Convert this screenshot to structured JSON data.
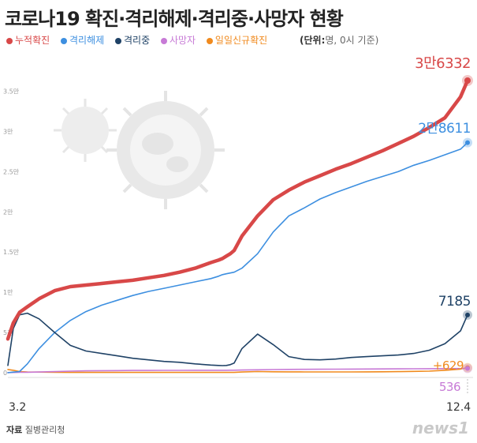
{
  "title": "코로나19 확진·격리해제·격리중·사망자 현황",
  "unit_label": "(단위:",
  "unit_value": "명, 0시 기준)",
  "source_label": "자료",
  "source_value": "질병관리청",
  "logo_text": "news1",
  "colors": {
    "cumulative": "#d84848",
    "released": "#3d8fe0",
    "isolated": "#1f4266",
    "deaths": "#c77ad6",
    "daily": "#f08a1e"
  },
  "chart_data": {
    "type": "line",
    "title": "코로나19 확진·격리해제·격리중·사망자 현황",
    "xlabel": "",
    "ylabel": "",
    "x_ticks": [
      "3.2",
      "12.4"
    ],
    "y_ticks": [
      "0",
      "5천",
      "1만",
      "1.5만",
      "2만",
      "2.5만",
      "3만",
      "3.5만"
    ],
    "ylim": [
      0,
      37000
    ],
    "grid": false,
    "legend": "top-left",
    "x": [
      0,
      7,
      15,
      25,
      40,
      60,
      80,
      100,
      120,
      140,
      160,
      180,
      200,
      220,
      240,
      260,
      270,
      275,
      280,
      285,
      290,
      300,
      320,
      340,
      360,
      380,
      400,
      420,
      440,
      460,
      480,
      500,
      520,
      540,
      560,
      580,
      589
    ],
    "series": [
      {
        "name": "누적확진",
        "key": "cumulative",
        "end_label": "3만6332",
        "values": [
          4200,
          6200,
          7500,
          8200,
          9200,
          10200,
          10700,
          10900,
          11100,
          11300,
          11500,
          11800,
          12100,
          12500,
          13000,
          13700,
          14000,
          14200,
          14500,
          14800,
          15200,
          17000,
          19500,
          21500,
          22700,
          23700,
          24500,
          25300,
          26000,
          26800,
          27600,
          28500,
          29400,
          30500,
          31700,
          34300,
          36332
        ]
      },
      {
        "name": "격리해제",
        "key": "released",
        "end_label": "2만8611",
        "values": [
          0,
          80,
          150,
          1100,
          3000,
          5000,
          6500,
          7600,
          8400,
          9000,
          9600,
          10100,
          10500,
          10900,
          11300,
          11700,
          12000,
          12200,
          12300,
          12400,
          12500,
          13000,
          14800,
          17500,
          19500,
          20500,
          21600,
          22400,
          23100,
          23800,
          24400,
          25000,
          25800,
          26400,
          27100,
          27800,
          28611
        ]
      },
      {
        "name": "격리중",
        "key": "isolated",
        "end_label": "7185",
        "values": [
          900,
          5500,
          7200,
          7400,
          6700,
          5000,
          3400,
          2700,
          2400,
          2100,
          1800,
          1600,
          1400,
          1300,
          1100,
          950,
          900,
          880,
          900,
          1000,
          1200,
          3000,
          4800,
          3500,
          2000,
          1650,
          1600,
          1700,
          1900,
          2000,
          2100,
          2200,
          2400,
          2800,
          3600,
          5200,
          7185
        ]
      },
      {
        "name": "사망자",
        "key": "deaths",
        "end_label": "536",
        "values": [
          20,
          30,
          45,
          60,
          90,
          140,
          200,
          240,
          260,
          270,
          280,
          285,
          290,
          295,
          300,
          302,
          304,
          306,
          308,
          310,
          312,
          330,
          360,
          390,
          410,
          420,
          430,
          440,
          450,
          460,
          470,
          480,
          495,
          505,
          515,
          525,
          536
        ]
      },
      {
        "name": "일일신규확진",
        "key": "daily",
        "end_label": "+629",
        "values": [
          400,
          300,
          150,
          100,
          80,
          60,
          40,
          40,
          40,
          40,
          40,
          40,
          40,
          40,
          40,
          40,
          40,
          40,
          40,
          40,
          40,
          90,
          150,
          120,
          110,
          100,
          100,
          100,
          100,
          110,
          120,
          140,
          170,
          200,
          300,
          450,
          629
        ]
      }
    ]
  }
}
